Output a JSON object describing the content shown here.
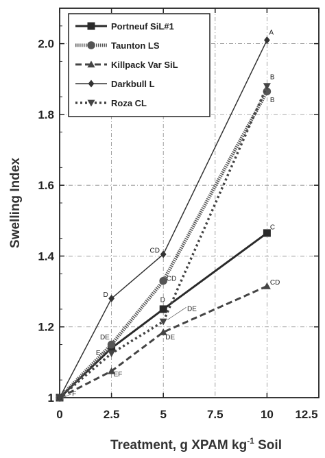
{
  "chart_data": {
    "type": "line",
    "xlabel": "Treatment,  g XPAM kg",
    "xlabel_sup": "-1",
    "xlabel_tail": " Soil",
    "ylabel": "Swelling Index",
    "xlim": [
      0,
      12.5
    ],
    "ylim": [
      1.0,
      2.1
    ],
    "x_category_ticks": [
      {
        "value": 0,
        "label": "0"
      },
      {
        "value": 2.5,
        "label": "2.5"
      },
      {
        "value": 5,
        "label": "5"
      },
      {
        "value": 10,
        "label": "10"
      }
    ],
    "x_top_ticks": [
      {
        "value": 0,
        "label": "0"
      },
      {
        "value": 2.5,
        "label": "2.5"
      },
      {
        "value": 5,
        "label": "5"
      },
      {
        "value": 7.5,
        "label": "7.5"
      },
      {
        "value": 10,
        "label": "10"
      },
      {
        "value": 12.5,
        "label": "12.5"
      }
    ],
    "y_ticks": [
      {
        "value": 1.0,
        "label": "1"
      },
      {
        "value": 1.2,
        "label": "1.2"
      },
      {
        "value": 1.4,
        "label": "1.4"
      },
      {
        "value": 1.6,
        "label": "1.6"
      },
      {
        "value": 1.8,
        "label": "1.8"
      },
      {
        "value": 2.0,
        "label": "2.0"
      }
    ],
    "grid": "dash-dot",
    "legend_position": "top-left",
    "series": [
      {
        "name": "Portneuf SiL#1",
        "marker": "square",
        "line": "solid-thick",
        "color": "#2a2a2a",
        "points": [
          {
            "x": 0,
            "y": 1.0
          },
          {
            "x": 2.5,
            "y": 1.14
          },
          {
            "x": 5,
            "y": 1.25
          },
          {
            "x": 10,
            "y": 1.465
          }
        ]
      },
      {
        "name": "Taunton LS",
        "marker": "circle",
        "line": "hatched",
        "color": "#555555",
        "points": [
          {
            "x": 0,
            "y": 1.0
          },
          {
            "x": 2.5,
            "y": 1.15
          },
          {
            "x": 5,
            "y": 1.33
          },
          {
            "x": 10,
            "y": 1.865
          }
        ]
      },
      {
        "name": "Killpack Var SiL",
        "marker": "triangle-up",
        "line": "dashed",
        "color": "#444444",
        "points": [
          {
            "x": 0,
            "y": 1.0
          },
          {
            "x": 2.5,
            "y": 1.075
          },
          {
            "x": 5,
            "y": 1.185
          },
          {
            "x": 10,
            "y": 1.315
          }
        ]
      },
      {
        "name": "Darkbull L",
        "marker": "diamond",
        "line": "solid-thin",
        "color": "#333333",
        "points": [
          {
            "x": 0,
            "y": 1.0
          },
          {
            "x": 2.5,
            "y": 1.28
          },
          {
            "x": 5,
            "y": 1.405
          },
          {
            "x": 10,
            "y": 2.01
          }
        ]
      },
      {
        "name": "Roza CL",
        "marker": "triangle-down",
        "line": "dotted",
        "color": "#444444",
        "points": [
          {
            "x": 0,
            "y": 1.0
          },
          {
            "x": 2.5,
            "y": 1.125
          },
          {
            "x": 5,
            "y": 1.215
          },
          {
            "x": 10,
            "y": 1.88
          }
        ]
      }
    ],
    "annotations": [
      {
        "text": "A",
        "x": 10.1,
        "y": 2.025
      },
      {
        "text": "B",
        "x": 10.15,
        "y": 1.9
      },
      {
        "text": "B",
        "x": 10.15,
        "y": 1.835
      },
      {
        "text": "C",
        "x": 10.15,
        "y": 1.475
      },
      {
        "text": "CD",
        "x": 10.15,
        "y": 1.32
      },
      {
        "text": "CD",
        "x": 4.35,
        "y": 1.41
      },
      {
        "text": "CD",
        "x": 5.15,
        "y": 1.33
      },
      {
        "text": "D",
        "x": 4.85,
        "y": 1.27
      },
      {
        "text": "D",
        "x": 2.1,
        "y": 1.285
      },
      {
        "text": "DE",
        "x": 1.95,
        "y": 1.165
      },
      {
        "text": "DE",
        "x": 6.15,
        "y": 1.245
      },
      {
        "text": "DE",
        "x": 5.1,
        "y": 1.165
      },
      {
        "text": "E",
        "x": 1.75,
        "y": 1.12
      },
      {
        "text": "EF",
        "x": 2.6,
        "y": 1.06
      },
      {
        "text": "F",
        "x": 0.6,
        "y": 1.005
      }
    ]
  }
}
